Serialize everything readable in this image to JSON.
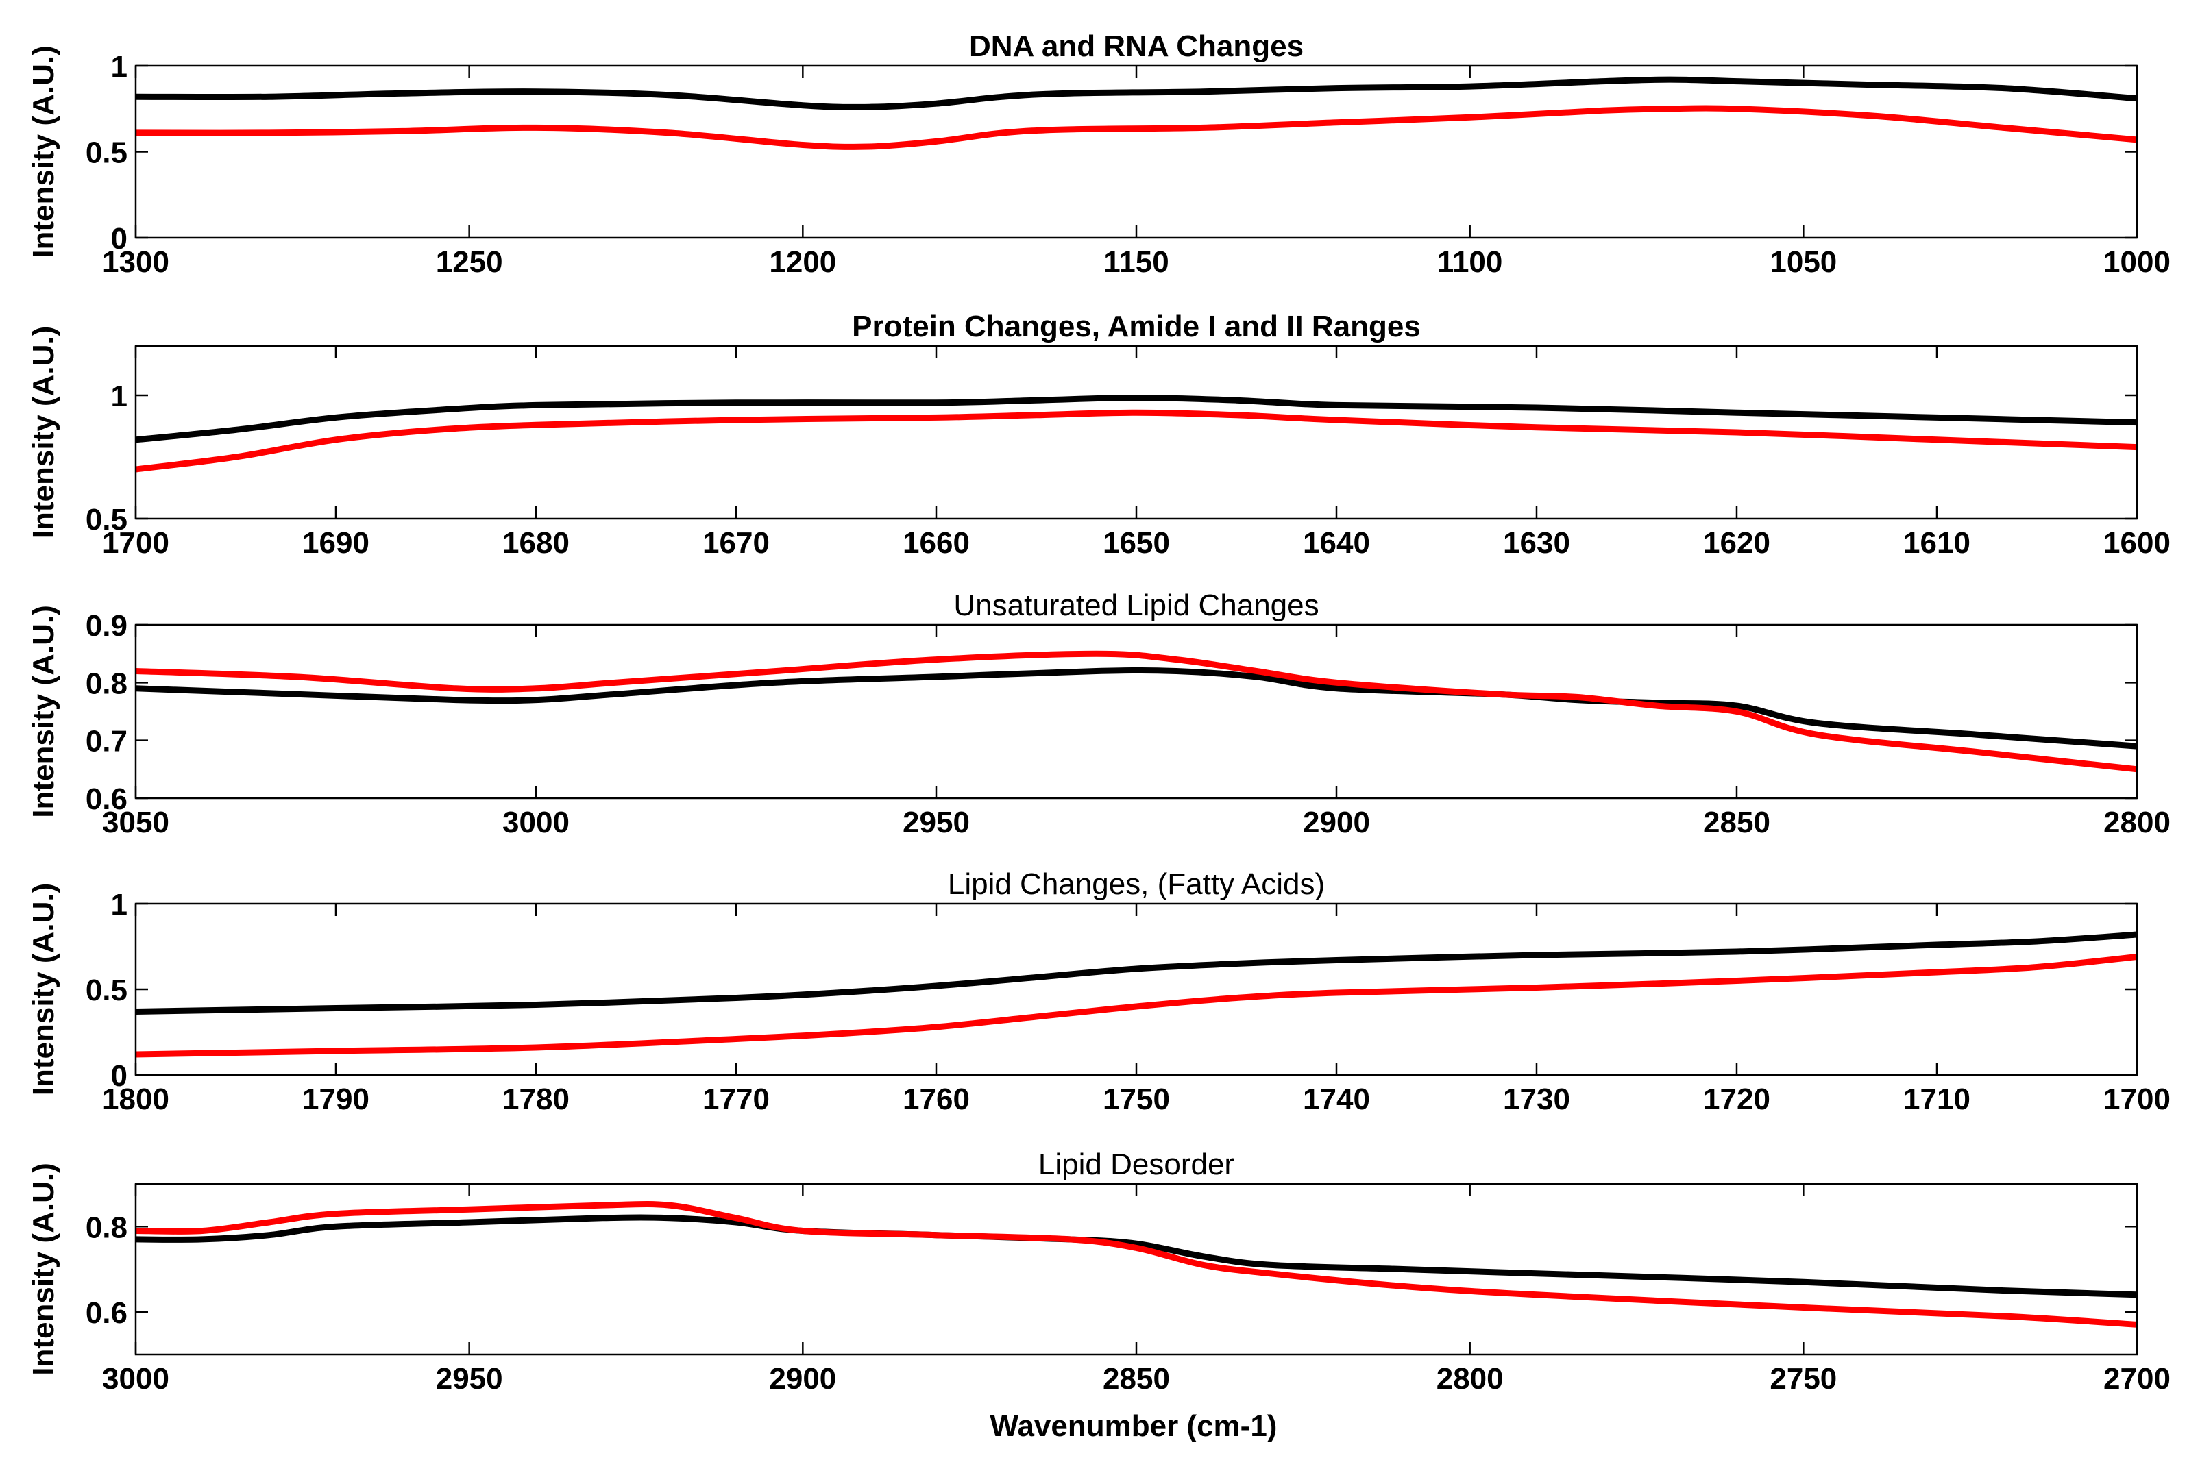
{
  "figure": {
    "xlabel": "Wavenumber (cm-1)"
  },
  "chart_data": [
    {
      "type": "line",
      "title": "DNA and RNA Changes",
      "title_weight": "bold",
      "xlabel": "",
      "ylabel": "Intensity (A.U.)",
      "xlim": [
        1300,
        1000
      ],
      "ylim": [
        0,
        1
      ],
      "xticks": [
        1300,
        1250,
        1200,
        1150,
        1100,
        1050,
        1000
      ],
      "yticks": [
        0,
        0.5,
        1
      ],
      "ytick_labels": [
        "0",
        "0.5",
        "1"
      ],
      "series": [
        {
          "name": "black",
          "color": "#000000",
          "x": [
            1300,
            1280,
            1260,
            1240,
            1220,
            1200,
            1190,
            1180,
            1170,
            1160,
            1140,
            1120,
            1100,
            1080,
            1070,
            1060,
            1040,
            1020,
            1000
          ],
          "y": [
            0.82,
            0.82,
            0.84,
            0.85,
            0.83,
            0.77,
            0.76,
            0.78,
            0.82,
            0.84,
            0.85,
            0.87,
            0.88,
            0.91,
            0.92,
            0.91,
            0.89,
            0.87,
            0.81
          ]
        },
        {
          "name": "red",
          "color": "#ff0000",
          "x": [
            1300,
            1280,
            1260,
            1240,
            1220,
            1200,
            1190,
            1180,
            1170,
            1160,
            1140,
            1120,
            1100,
            1080,
            1070,
            1060,
            1040,
            1020,
            1000
          ],
          "y": [
            0.61,
            0.61,
            0.62,
            0.64,
            0.61,
            0.54,
            0.53,
            0.56,
            0.61,
            0.63,
            0.64,
            0.67,
            0.7,
            0.74,
            0.75,
            0.75,
            0.71,
            0.64,
            0.57
          ]
        }
      ]
    },
    {
      "type": "line",
      "title": "Protein Changes, Amide I and II Ranges",
      "title_weight": "bold",
      "xlabel": "",
      "ylabel": "Intensity (A.U.)",
      "xlim": [
        1700,
        1600
      ],
      "ylim": [
        0.5,
        1.2
      ],
      "xticks": [
        1700,
        1690,
        1680,
        1670,
        1660,
        1650,
        1640,
        1630,
        1620,
        1610,
        1600
      ],
      "yticks": [
        0.5,
        1
      ],
      "ytick_labels": [
        "0.5",
        "1"
      ],
      "series": [
        {
          "name": "black",
          "color": "#000000",
          "x": [
            1700,
            1695,
            1690,
            1685,
            1680,
            1670,
            1660,
            1655,
            1650,
            1645,
            1640,
            1630,
            1620,
            1610,
            1600
          ],
          "y": [
            0.82,
            0.86,
            0.91,
            0.94,
            0.96,
            0.97,
            0.97,
            0.98,
            0.99,
            0.98,
            0.96,
            0.95,
            0.93,
            0.91,
            0.89
          ]
        },
        {
          "name": "red",
          "color": "#ff0000",
          "x": [
            1700,
            1695,
            1690,
            1685,
            1680,
            1670,
            1660,
            1655,
            1650,
            1645,
            1640,
            1630,
            1620,
            1610,
            1600
          ],
          "y": [
            0.7,
            0.75,
            0.82,
            0.86,
            0.88,
            0.9,
            0.91,
            0.92,
            0.93,
            0.92,
            0.9,
            0.87,
            0.85,
            0.82,
            0.79
          ]
        }
      ]
    },
    {
      "type": "line",
      "title": "Unsaturated Lipid Changes",
      "title_weight": "normal",
      "xlabel": "",
      "ylabel": "Intensity (A.U.)",
      "xlim": [
        3050,
        2800
      ],
      "ylim": [
        0.6,
        0.9
      ],
      "xticks": [
        3050,
        3000,
        2950,
        2900,
        2850,
        2800
      ],
      "yticks": [
        0.6,
        0.7,
        0.8,
        0.9
      ],
      "ytick_labels": [
        "0.6",
        "0.7",
        "0.8",
        "0.9"
      ],
      "series": [
        {
          "name": "black",
          "color": "#000000",
          "x": [
            3050,
            3030,
            3010,
            3000,
            2990,
            2970,
            2950,
            2930,
            2920,
            2910,
            2900,
            2880,
            2870,
            2860,
            2850,
            2840,
            2820,
            2800
          ],
          "y": [
            0.79,
            0.78,
            0.77,
            0.77,
            0.78,
            0.8,
            0.81,
            0.82,
            0.82,
            0.81,
            0.79,
            0.78,
            0.77,
            0.765,
            0.76,
            0.73,
            0.71,
            0.69
          ]
        },
        {
          "name": "red",
          "color": "#ff0000",
          "x": [
            3050,
            3030,
            3010,
            3000,
            2990,
            2970,
            2950,
            2930,
            2920,
            2910,
            2900,
            2880,
            2870,
            2860,
            2850,
            2840,
            2820,
            2800
          ],
          "y": [
            0.82,
            0.81,
            0.79,
            0.79,
            0.8,
            0.82,
            0.84,
            0.85,
            0.84,
            0.82,
            0.8,
            0.78,
            0.775,
            0.76,
            0.75,
            0.71,
            0.68,
            0.65
          ]
        }
      ]
    },
    {
      "type": "line",
      "title": "Lipid Changes, (Fatty Acids)",
      "title_weight": "normal",
      "xlabel": "",
      "ylabel": "Intensity (A.U.)",
      "xlim": [
        1800,
        1700
      ],
      "ylim": [
        0,
        1
      ],
      "xticks": [
        1800,
        1790,
        1780,
        1770,
        1760,
        1750,
        1740,
        1730,
        1720,
        1710,
        1700
      ],
      "yticks": [
        0,
        0.5,
        1
      ],
      "ytick_labels": [
        "0",
        "0.5",
        "1"
      ],
      "series": [
        {
          "name": "black",
          "color": "#000000",
          "x": [
            1800,
            1790,
            1780,
            1770,
            1765,
            1760,
            1755,
            1750,
            1745,
            1740,
            1730,
            1720,
            1710,
            1705,
            1700
          ],
          "y": [
            0.37,
            0.39,
            0.41,
            0.45,
            0.48,
            0.52,
            0.57,
            0.62,
            0.65,
            0.67,
            0.7,
            0.72,
            0.76,
            0.78,
            0.82
          ]
        },
        {
          "name": "red",
          "color": "#ff0000",
          "x": [
            1800,
            1790,
            1780,
            1770,
            1765,
            1760,
            1755,
            1750,
            1745,
            1740,
            1730,
            1720,
            1710,
            1705,
            1700
          ],
          "y": [
            0.12,
            0.14,
            0.16,
            0.21,
            0.24,
            0.28,
            0.34,
            0.4,
            0.45,
            0.48,
            0.51,
            0.55,
            0.6,
            0.63,
            0.69
          ]
        }
      ]
    },
    {
      "type": "line",
      "title": "Lipid Desorder",
      "title_weight": "normal",
      "xlabel": "Wavenumber (cm-1)",
      "ylabel": "Intensity (A.U.)",
      "xlim": [
        3000,
        2700
      ],
      "ylim": [
        0.5,
        0.9
      ],
      "xticks": [
        3000,
        2950,
        2900,
        2850,
        2800,
        2750,
        2700
      ],
      "yticks": [
        0.6,
        0.8
      ],
      "ytick_labels": [
        "0.6",
        "0.8"
      ],
      "series": [
        {
          "name": "black",
          "color": "#000000",
          "x": [
            3000,
            2990,
            2980,
            2970,
            2950,
            2930,
            2920,
            2910,
            2900,
            2880,
            2860,
            2850,
            2840,
            2830,
            2810,
            2790,
            2750,
            2720,
            2700
          ],
          "y": [
            0.77,
            0.77,
            0.78,
            0.8,
            0.81,
            0.82,
            0.82,
            0.81,
            0.79,
            0.78,
            0.77,
            0.76,
            0.73,
            0.71,
            0.7,
            0.69,
            0.67,
            0.65,
            0.64
          ]
        },
        {
          "name": "red",
          "color": "#ff0000",
          "x": [
            3000,
            2990,
            2980,
            2970,
            2950,
            2930,
            2920,
            2910,
            2900,
            2880,
            2860,
            2850,
            2840,
            2830,
            2810,
            2790,
            2750,
            2720,
            2700
          ],
          "y": [
            0.79,
            0.79,
            0.81,
            0.83,
            0.84,
            0.85,
            0.85,
            0.82,
            0.79,
            0.78,
            0.77,
            0.75,
            0.71,
            0.69,
            0.66,
            0.64,
            0.61,
            0.59,
            0.57
          ]
        }
      ]
    }
  ]
}
